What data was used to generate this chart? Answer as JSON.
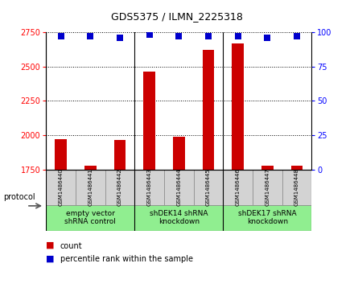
{
  "title": "GDS5375 / ILMN_2225318",
  "samples": [
    "GSM1486440",
    "GSM1486441",
    "GSM1486442",
    "GSM1486443",
    "GSM1486444",
    "GSM1486445",
    "GSM1486446",
    "GSM1486447",
    "GSM1486448"
  ],
  "counts": [
    1970,
    1775,
    1965,
    2465,
    1990,
    2620,
    2665,
    1775,
    1775
  ],
  "percentiles": [
    97,
    97,
    96,
    98,
    97,
    97,
    97,
    96,
    97
  ],
  "ylim_left": [
    1750,
    2750
  ],
  "yticks_left": [
    1750,
    2000,
    2250,
    2500,
    2750
  ],
  "ylim_right": [
    0,
    100
  ],
  "yticks_right": [
    0,
    25,
    50,
    75,
    100
  ],
  "bar_color": "#cc0000",
  "dot_color": "#0000cc",
  "groups": [
    {
      "label": "empty vector\nshRNA control",
      "start": 0,
      "end": 2,
      "color": "#90ee90"
    },
    {
      "label": "shDEK14 shRNA\nknockdown",
      "start": 3,
      "end": 5,
      "color": "#90ee90"
    },
    {
      "label": "shDEK17 shRNA\nknockdown",
      "start": 6,
      "end": 8,
      "color": "#90ee90"
    }
  ],
  "protocol_label": "protocol",
  "legend_count_label": "count",
  "legend_pct_label": "percentile rank within the sample",
  "background_color": "#ffffff",
  "sample_box_color": "#d3d3d3",
  "bar_width": 0.4,
  "dot_size": 40,
  "title_fontsize": 9,
  "tick_fontsize": 7,
  "sample_fontsize": 5,
  "group_fontsize": 6.5,
  "legend_fontsize": 7
}
